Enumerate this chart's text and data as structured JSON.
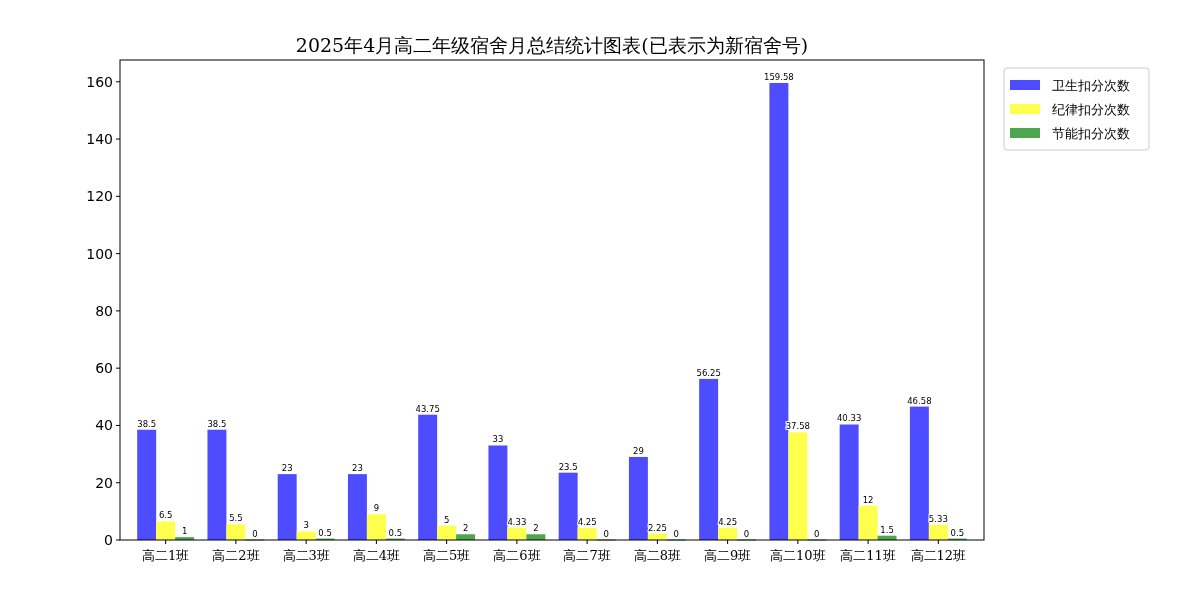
{
  "chart_data": {
    "type": "bar",
    "title": "2025年4月高二年级宿舍月总结统计图表(已表示为新宿舍号)",
    "categories": [
      "高二1班",
      "高二2班",
      "高二3班",
      "高二4班",
      "高二5班",
      "高二6班",
      "高二7班",
      "高二8班",
      "高二9班",
      "高二10班",
      "高二11班",
      "高二12班"
    ],
    "series": [
      {
        "name": "卫生扣分次数",
        "color": "#4d4dff",
        "values": [
          38.5,
          38.5,
          23,
          23,
          43.75,
          33,
          23.5,
          29,
          56.25,
          159.58,
          40.33,
          46.58
        ]
      },
      {
        "name": "纪律扣分次数",
        "color": "#ffff4d",
        "values": [
          6.5,
          5.5,
          3,
          9,
          5,
          4.33,
          4.25,
          2.25,
          4.25,
          37.58,
          12,
          5.33
        ]
      },
      {
        "name": "节能扣分次数",
        "color": "#4da64d",
        "values": [
          1,
          0,
          0.5,
          0.5,
          2,
          2,
          0,
          0,
          0,
          0,
          1.5,
          0.5
        ]
      }
    ],
    "ylim": [
      0,
      167.6
    ],
    "yticks": [
      0,
      20,
      40,
      60,
      80,
      100,
      120,
      140,
      160
    ],
    "data_labels": true,
    "legend": "top right",
    "grid": false
  }
}
